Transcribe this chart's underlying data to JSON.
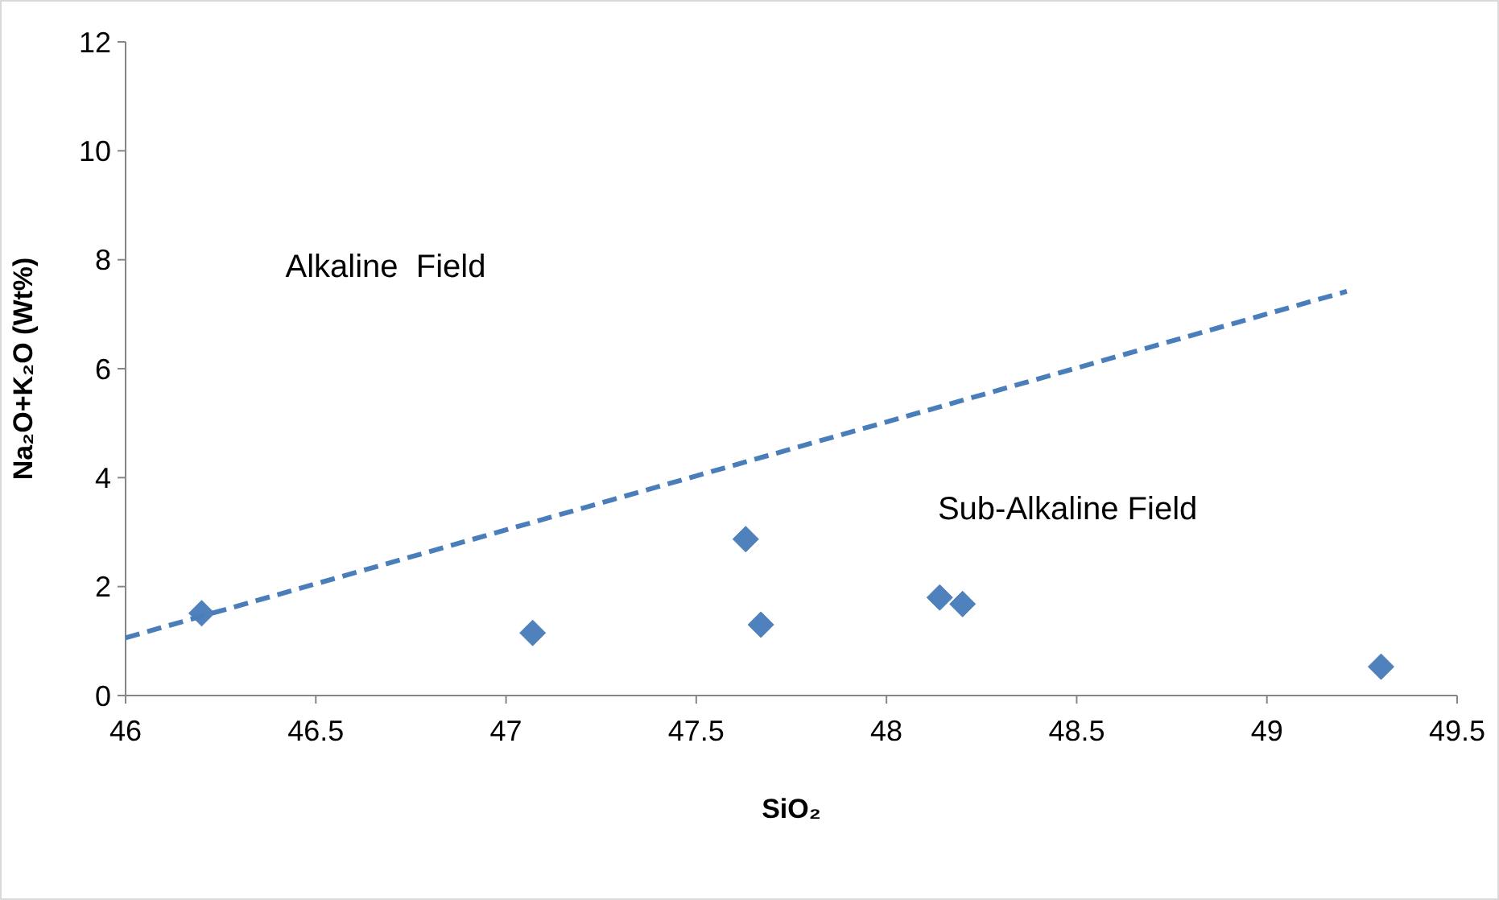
{
  "chart_data": {
    "type": "scatter",
    "xlabel": "SiO₂",
    "ylabel": "Na₂O+K₂O (Wt%)",
    "xlim": [
      46,
      49.5
    ],
    "xticks": [
      46,
      46.5,
      47,
      47.5,
      48,
      48.5,
      49,
      49.5
    ],
    "ylim": [
      0,
      12
    ],
    "yticks": [
      0,
      2,
      4,
      6,
      8,
      10,
      12
    ],
    "grid": false,
    "series": [
      {
        "color": "#4f81bd",
        "marker": "diamond",
        "x": [
          46.2,
          47.07,
          47.63,
          47.67,
          48.14,
          48.2,
          49.3
        ],
        "values": [
          1.51,
          1.15,
          2.87,
          1.3,
          1.8,
          1.68,
          0.53
        ]
      },
      {
        "type": "line",
        "color": "#4a7ebb",
        "marker": "none",
        "line_style": "dashed",
        "x": [
          46,
          49.21
        ],
        "values": [
          1.06,
          7.42
        ]
      }
    ],
    "annotations": [
      "Alkaline  Field",
      "Sub-Alkaline Field"
    ]
  }
}
